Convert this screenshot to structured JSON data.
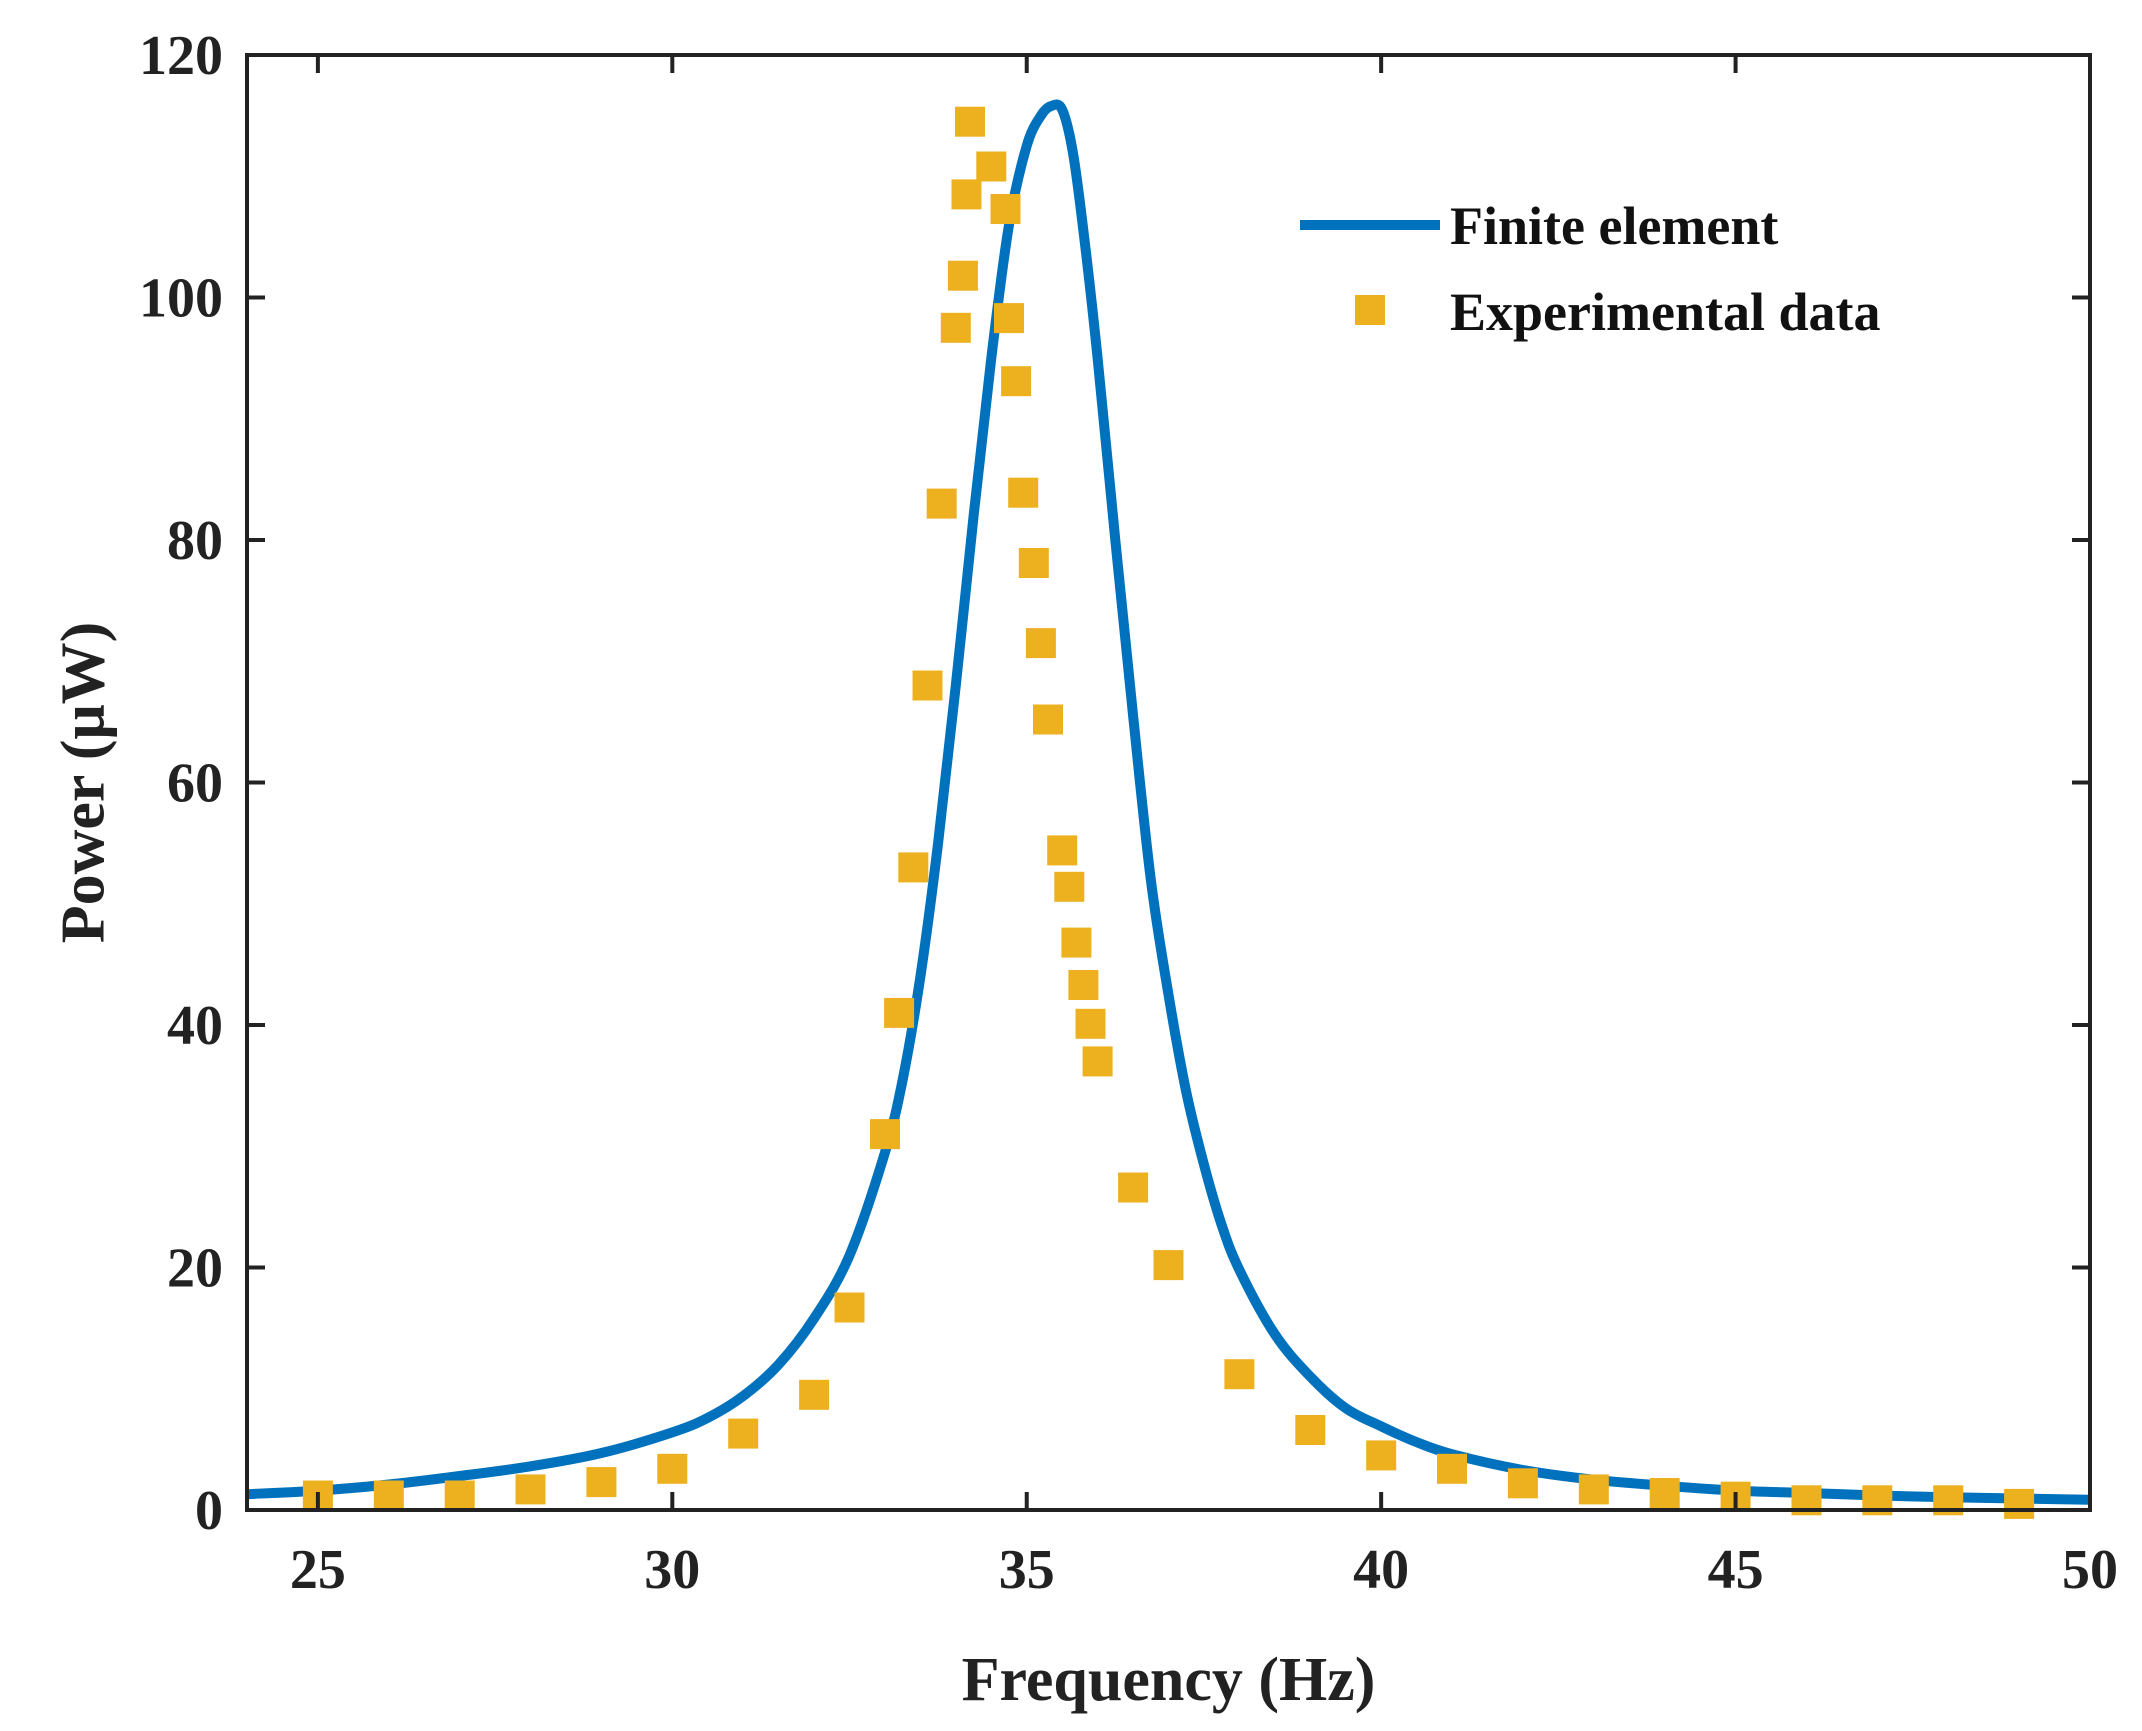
{
  "chart_data": {
    "type": "line",
    "title": "",
    "xlabel": "Frequency (Hz)",
    "ylabel": "Power (μW)",
    "xlim": [
      24,
      50
    ],
    "ylim": [
      0,
      120
    ],
    "xticks": [
      "25",
      "30",
      "35",
      "40",
      "45",
      "50"
    ],
    "xtick_values": [
      25,
      30,
      35,
      40,
      45,
      50
    ],
    "yticks": [
      "0",
      "20",
      "40",
      "60",
      "80",
      "100",
      "120"
    ],
    "ytick_values": [
      0,
      20,
      40,
      60,
      80,
      100,
      120
    ],
    "grid": false,
    "legend_position": "top-right",
    "series": [
      {
        "name": "Finite element",
        "kind": "line",
        "color": "#0072BD",
        "x": [
          24,
          25,
          26,
          27,
          28,
          29,
          30,
          30.5,
          31,
          31.5,
          32,
          32.5,
          33,
          33.25,
          33.5,
          33.75,
          34,
          34.25,
          34.5,
          34.75,
          35,
          35.2,
          35.35,
          35.5,
          35.65,
          35.8,
          36,
          36.25,
          36.5,
          36.75,
          37,
          37.25,
          37.5,
          37.75,
          38,
          38.5,
          39,
          39.5,
          40,
          40.5,
          41,
          42,
          43,
          44,
          45,
          46,
          47,
          48,
          49,
          50
        ],
        "y": [
          1.3,
          1.6,
          2.1,
          2.8,
          3.6,
          4.7,
          6.4,
          7.6,
          9.4,
          12.0,
          15.8,
          21.0,
          29.5,
          35.5,
          44.0,
          55.0,
          68.0,
          82.0,
          95.0,
          106.0,
          112.5,
          115.0,
          115.8,
          115.5,
          112.0,
          105.5,
          95.0,
          80.0,
          65.5,
          52.0,
          42.5,
          34.5,
          28.5,
          23.5,
          19.8,
          14.5,
          11.0,
          8.4,
          6.9,
          5.6,
          4.6,
          3.3,
          2.5,
          2.0,
          1.6,
          1.4,
          1.2,
          1.05,
          0.95,
          0.85
        ]
      },
      {
        "name": "Experimental data",
        "kind": "scatter",
        "marker": "square",
        "color": "#EDB120",
        "x": [
          25,
          26,
          27,
          28,
          29,
          30,
          31,
          32,
          32.5,
          33,
          33.2,
          33.4,
          33.6,
          33.8,
          34,
          34.1,
          34.15,
          34.2,
          34.5,
          34.7,
          34.75,
          34.85,
          34.95,
          35.1,
          35.2,
          35.3,
          35.5,
          35.6,
          35.7,
          35.8,
          35.9,
          36,
          36.5,
          37,
          38,
          39,
          40,
          41,
          42,
          43,
          44,
          45,
          46,
          47,
          48,
          49
        ],
        "y": [
          1.2,
          1.2,
          1.2,
          1.7,
          2.3,
          3.4,
          6.3,
          9.5,
          16.7,
          31.0,
          41.0,
          53.0,
          68.0,
          83.0,
          97.5,
          101.8,
          108.5,
          114.5,
          110.8,
          107.3,
          98.3,
          93.1,
          83.9,
          78.1,
          71.5,
          65.2,
          54.4,
          51.4,
          46.8,
          43.3,
          40.1,
          37.0,
          26.6,
          20.2,
          11.2,
          6.6,
          4.5,
          3.4,
          2.2,
          1.7,
          1.4,
          1.1,
          0.8,
          0.8,
          0.8,
          0.5
        ]
      }
    ],
    "legend": [
      "Finite element",
      "Experimental data"
    ]
  }
}
